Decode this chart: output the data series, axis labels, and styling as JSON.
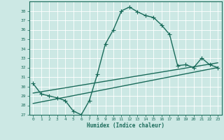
{
  "xlabel": "Humidex (Indice chaleur)",
  "bg_color": "#cce8e4",
  "grid_color": "#b0d4cf",
  "line_color": "#1a6b5a",
  "xlim": [
    -0.5,
    23.5
  ],
  "ylim": [
    27,
    39
  ],
  "yticks": [
    27,
    28,
    29,
    30,
    31,
    32,
    33,
    34,
    35,
    36,
    37,
    38
  ],
  "xticks": [
    0,
    1,
    2,
    3,
    4,
    5,
    6,
    7,
    8,
    9,
    10,
    11,
    12,
    13,
    14,
    15,
    16,
    17,
    18,
    19,
    20,
    21,
    22,
    23
  ],
  "curve1_x": [
    0,
    1,
    2,
    3,
    4,
    5,
    6,
    7,
    8,
    9,
    10,
    11,
    12,
    13,
    14,
    15,
    16,
    17,
    18,
    19,
    20,
    21,
    22,
    23
  ],
  "curve1_y": [
    30.3,
    29.2,
    29.0,
    28.8,
    28.5,
    27.4,
    27.0,
    28.5,
    31.3,
    34.5,
    36.0,
    38.0,
    38.4,
    37.9,
    37.5,
    37.3,
    36.5,
    35.5,
    32.2,
    32.3,
    32.0,
    33.0,
    32.3,
    32.0
  ],
  "line1_x": [
    0,
    23
  ],
  "line1_y": [
    28.2,
    32.0
  ],
  "line2_x": [
    0,
    23
  ],
  "line2_y": [
    29.3,
    32.5
  ],
  "line_width": 1.0,
  "marker_size": 4
}
